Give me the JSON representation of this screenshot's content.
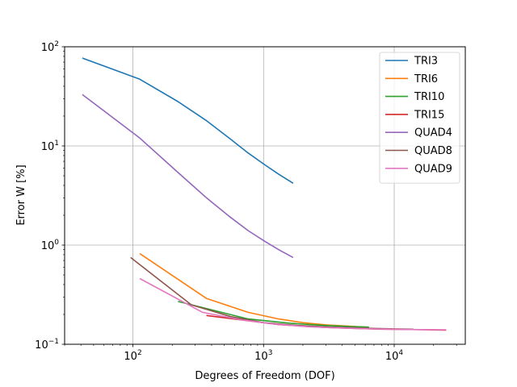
{
  "chart_data": {
    "type": "line",
    "title": "",
    "xlabel": "Degrees of Freedom (DOF)",
    "ylabel": "Error W [%]",
    "xscale": "log",
    "yscale": "log",
    "xlim": [
      30,
      35000
    ],
    "ylim": [
      0.1,
      100
    ],
    "grid": true,
    "legend_position": "top-right",
    "x_ticks": [
      {
        "value": 100,
        "base": "10",
        "exp": "2"
      },
      {
        "value": 1000,
        "base": "10",
        "exp": "3"
      },
      {
        "value": 10000,
        "base": "10",
        "exp": "4"
      }
    ],
    "y_ticks": [
      {
        "value": 0.1,
        "base": "10",
        "exp": "−1"
      },
      {
        "value": 1,
        "base": "10",
        "exp": "0"
      },
      {
        "value": 10,
        "base": "10",
        "exp": "1"
      },
      {
        "value": 100,
        "base": "10",
        "exp": "2"
      }
    ],
    "series": [
      {
        "name": "TRI3",
        "color": "#1f77b4",
        "x": [
          41,
          113,
          221,
          365,
          545,
          761,
          1013,
          1301,
          1685
        ],
        "y": [
          77,
          47,
          28,
          18,
          12,
          8.5,
          6.5,
          5.2,
          4.2
        ]
      },
      {
        "name": "TRI6",
        "color": "#ff7f0e",
        "x": [
          113,
          365,
          761,
          1301,
          2000,
          3000,
          4500,
          6400
        ],
        "y": [
          0.82,
          0.29,
          0.21,
          0.18,
          0.165,
          0.157,
          0.152,
          0.148
        ]
      },
      {
        "name": "TRI10",
        "color": "#2ca02c",
        "x": [
          221,
          761,
          1600,
          2900,
          4700,
          6400
        ],
        "y": [
          0.27,
          0.18,
          0.163,
          0.155,
          0.151,
          0.149
        ]
      },
      {
        "name": "TRI15",
        "color": "#d62728",
        "x": [
          365,
          1301,
          2900,
          5200,
          8200,
          12000,
          17000,
          25000
        ],
        "y": [
          0.195,
          0.158,
          0.148,
          0.144,
          0.142,
          0.141,
          0.14,
          0.139
        ]
      },
      {
        "name": "QUAD4",
        "color": "#9467bd",
        "x": [
          41,
          113,
          221,
          365,
          545,
          761,
          1013,
          1301,
          1685
        ],
        "y": [
          33,
          12,
          5.4,
          3.0,
          1.95,
          1.4,
          1.1,
          0.9,
          0.75
        ]
      },
      {
        "name": "QUAD8",
        "color": "#8c564b",
        "x": [
          96,
          280,
          560,
          1000,
          1800,
          3300,
          6400,
          10000,
          14000
        ],
        "y": [
          0.75,
          0.25,
          0.19,
          0.165,
          0.155,
          0.149,
          0.145,
          0.143,
          0.142
        ]
      },
      {
        "name": "QUAD9",
        "color": "#e377c2",
        "x": [
          113,
          341,
          700,
          1200,
          2200,
          3800,
          7000,
          12000,
          25000
        ],
        "y": [
          0.46,
          0.21,
          0.175,
          0.16,
          0.15,
          0.146,
          0.143,
          0.141,
          0.14
        ]
      }
    ]
  }
}
